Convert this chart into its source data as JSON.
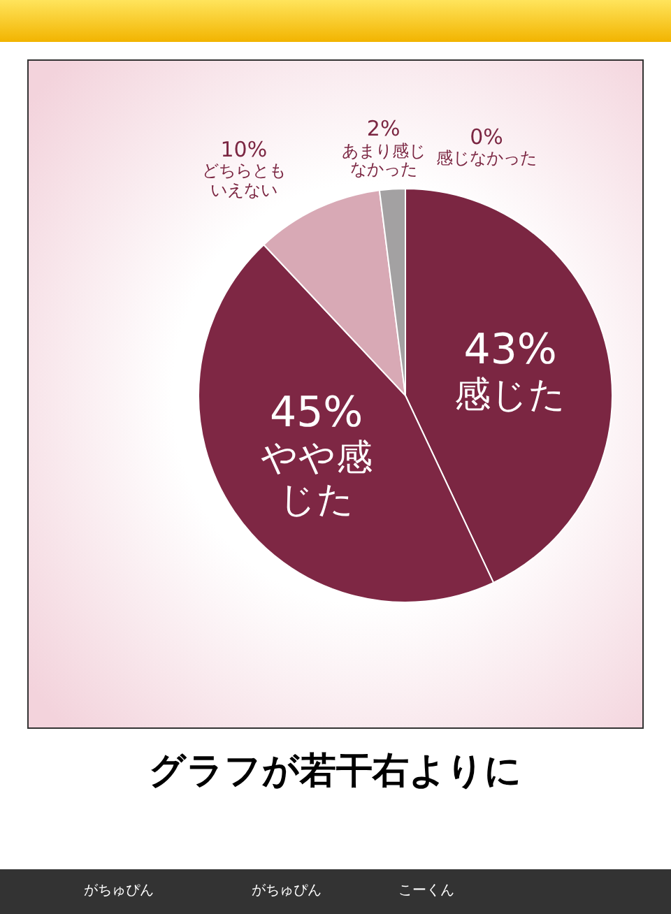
{
  "chart_data": {
    "type": "pie",
    "categories": [
      "感じた",
      "やや感じた",
      "どちらともいえない",
      "あまり感じなかった",
      "感じなかった"
    ],
    "values": [
      43,
      45,
      10,
      2,
      0
    ],
    "value_labels": [
      "43%",
      "45%",
      "10%",
      "2%",
      "0%"
    ],
    "colors": [
      "#7b2642",
      "#7e2744",
      "#d8a9b5",
      "#a3a1a2",
      "#c9c9c9"
    ],
    "annotations": [
      "グラフが若干右よりに",
      "がちゅぴん",
      "がちゅぴん",
      "こーくん"
    ]
  }
}
